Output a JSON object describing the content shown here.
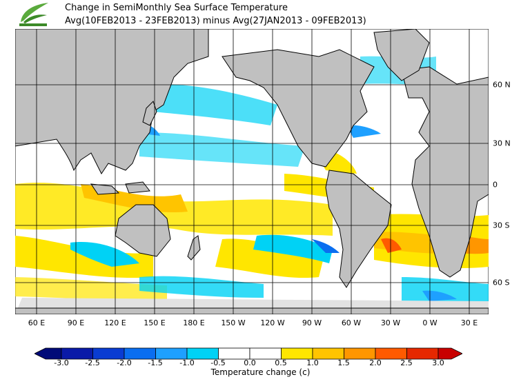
{
  "header": {
    "title": "Change in SemiMonthly Sea Surface Temperature",
    "subtitle": "Avg(10FEB2013 - 23FEB2013) minus Avg(27JAN2013 - 09FEB2013)",
    "logo_icon": "leaf-logo-icon"
  },
  "map": {
    "projection": "equirectangular",
    "lon_ticks": [
      "60 E",
      "90 E",
      "120 E",
      "150 E",
      "180 E",
      "150 W",
      "120 W",
      "90 W",
      "60 W",
      "30 W",
      "0 W",
      "30 E"
    ],
    "lat_ticks": [
      "60 N",
      "30 N",
      "0",
      "30 S",
      "60 S"
    ],
    "land_color": "#c0c0c0",
    "ice_color": "#e2e2e2",
    "ocean_color": "#ffffff",
    "grid": true
  },
  "colorbar": {
    "label": "Temperature change  (c)",
    "ticks": [
      "-3.0",
      "-2.5",
      "-2.0",
      "-1.5",
      "-1.0",
      "-0.5",
      "0.0",
      "0.5",
      "1.0",
      "1.5",
      "2.0",
      "2.5",
      "3.0"
    ],
    "colors": [
      "#000a78",
      "#0a1aa8",
      "#0a3cd2",
      "#0a6ef0",
      "#1ea0ff",
      "#00d2f5",
      "#ffffff",
      "#ffe600",
      "#ffc400",
      "#ff9600",
      "#ff5a00",
      "#e62800",
      "#c80000"
    ]
  }
}
